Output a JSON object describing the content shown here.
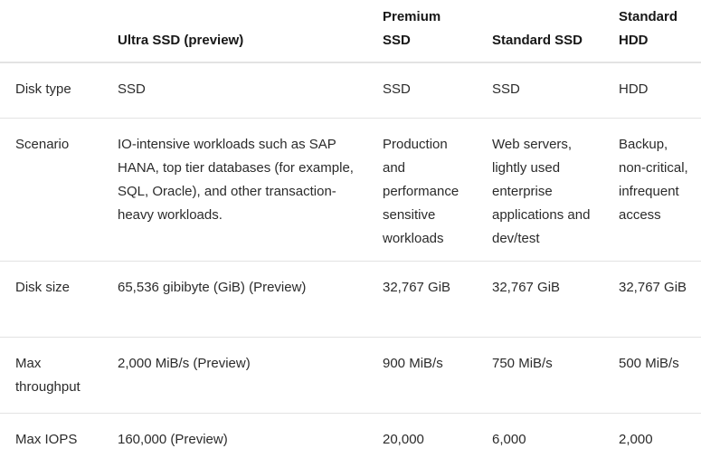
{
  "headers": [
    "",
    "Ultra SSD (preview)",
    "Premium SSD",
    "Standard SSD",
    "Standard HDD"
  ],
  "rows": [
    {
      "label": "Disk type",
      "cells": [
        "SSD",
        "SSD",
        "SSD",
        "HDD"
      ]
    },
    {
      "label": "Scenario",
      "cells": [
        "IO-intensive workloads such as SAP HANA, top tier databases (for example, SQL, Oracle), and other transaction-heavy workloads.",
        "Production and performance sensitive workloads",
        "Web servers, lightly used enterprise applications and dev/test",
        "Backup, non-critical, infrequent access"
      ]
    },
    {
      "label": "Disk size",
      "cells": [
        "65,536 gibibyte (GiB) (Preview)",
        "32,767 GiB",
        "32,767 GiB",
        "32,767 GiB"
      ]
    },
    {
      "label": "Max throughput",
      "cells": [
        "2,000 MiB/s (Preview)",
        "900 MiB/s",
        "750 MiB/s",
        "500 MiB/s"
      ]
    },
    {
      "label": "Max IOPS",
      "cells": [
        "160,000 (Preview)",
        "20,000",
        "6,000",
        "2,000"
      ]
    }
  ]
}
